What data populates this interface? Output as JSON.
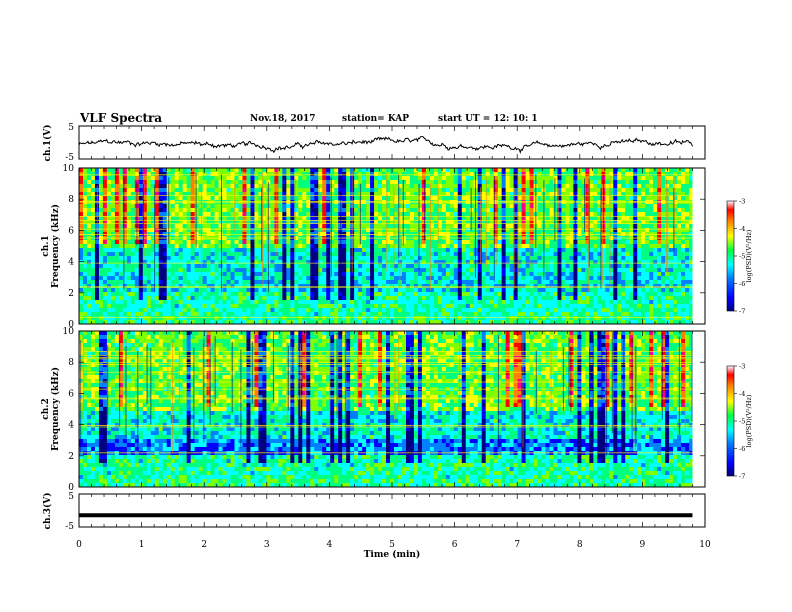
{
  "header": {
    "title": "VLF Spectra",
    "date": "Nov.18, 2017",
    "station": "station= KAP",
    "start": "start  UT =   12: 10: 1"
  },
  "chart_data": [
    {
      "type": "line",
      "panel": "ch1-waveform",
      "ylabel": "ch.1(V)",
      "ylim": [
        -5,
        5
      ],
      "yticks": [
        "5",
        "-5"
      ],
      "xlim": [
        0,
        10
      ],
      "series": [
        {
          "values_desc": "noisy waveform around -1 V, amplitude about ±1.5 V, from 0 to 9.8 min"
        }
      ]
    },
    {
      "type": "heatmap",
      "panel": "ch1-spectrogram",
      "ylabel": "ch.1\nFrequency (kHz)",
      "ylim": [
        0,
        10
      ],
      "yticks": [
        "0",
        "2",
        "4",
        "6",
        "8",
        "10"
      ],
      "xlim": [
        0,
        10
      ],
      "colorbar": {
        "label": "log(PSD)(V²/Hz)",
        "range": [
          -7,
          -3
        ],
        "ticks": [
          "-3",
          "-4",
          "-5",
          "-6",
          "-7"
        ]
      }
    },
    {
      "type": "heatmap",
      "panel": "ch2-spectrogram",
      "ylabel": "ch.2\nFrequency (kHz)",
      "ylim": [
        0,
        10
      ],
      "yticks": [
        "0",
        "2",
        "4",
        "6",
        "8",
        "10"
      ],
      "xlim": [
        0,
        10
      ],
      "colorbar": {
        "label": "log(PSD)(V²/Hz)",
        "range": [
          -7,
          -3
        ],
        "ticks": [
          "-3",
          "-4",
          "-5",
          "-6",
          "-7"
        ]
      }
    },
    {
      "type": "line",
      "panel": "ch3-waveform",
      "ylabel": "ch.3(V)",
      "ylim": [
        -5,
        5
      ],
      "yticks": [
        "5",
        "-5"
      ],
      "xlim": [
        0,
        10
      ],
      "xlabel": "Time  (min)",
      "xticks": [
        "0",
        "1",
        "2",
        "3",
        "4",
        "5",
        "6",
        "7",
        "8",
        "9",
        "10"
      ],
      "series": [
        {
          "values_desc": "flat line at about -1.5 V from 0 to 9.8 min"
        }
      ]
    }
  ],
  "palette": [
    "#000080",
    "#0000ff",
    "#0080ff",
    "#00ffff",
    "#00ff80",
    "#80ff00",
    "#ffff00",
    "#ff8000",
    "#ff0000",
    "#ff0080"
  ]
}
